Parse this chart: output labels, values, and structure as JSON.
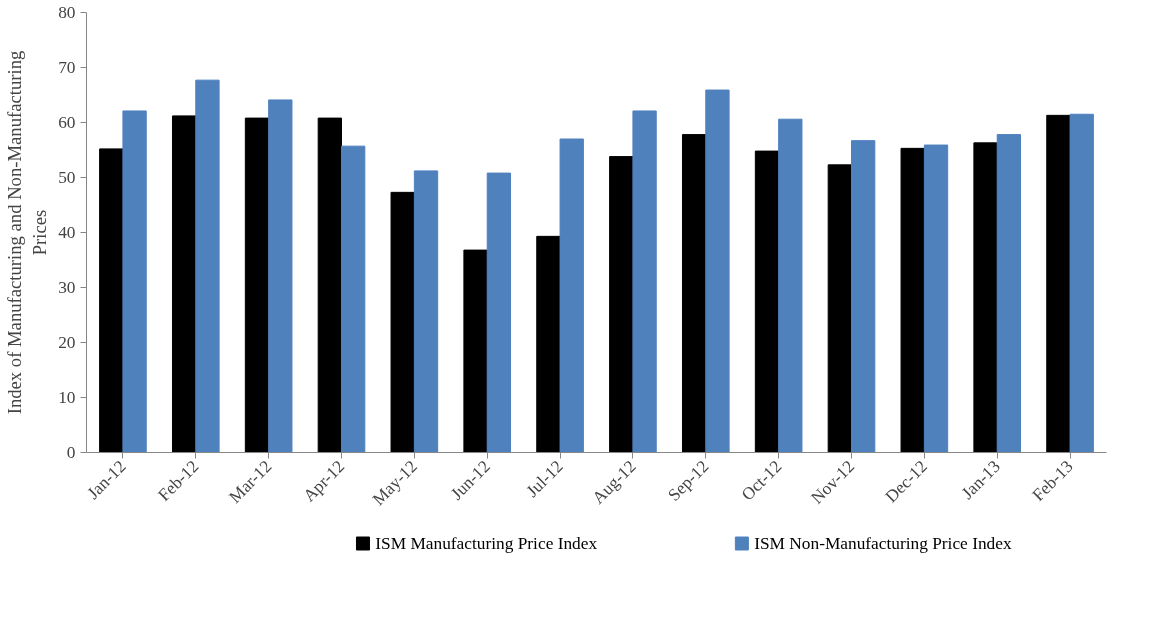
{
  "chart_data": {
    "type": "bar",
    "ylabel": "Index of Manufacturing and Non-Manufacturing Prices",
    "categories": [
      "Jan-12",
      "Feb-12",
      "Mar-12",
      "Apr-12",
      "May-12",
      "Jun-12",
      "Jul-12",
      "Aug-12",
      "Sep-12",
      "Oct-12",
      "Nov-12",
      "Dec-12",
      "Jan-13",
      "Feb-13"
    ],
    "series": [
      {
        "name": "ISM Manufacturing Price Index",
        "color": "#000000",
        "values": [
          55.2,
          61.2,
          60.8,
          60.8,
          47.3,
          36.8,
          39.3,
          53.8,
          57.8,
          54.8,
          52.3,
          55.3,
          56.3,
          61.3
        ]
      },
      {
        "name": "ISM Non-Manufacturing Price Index",
        "color": "#4f81bd",
        "values": [
          62.1,
          67.7,
          64.1,
          55.7,
          51.2,
          50.8,
          57.0,
          62.1,
          65.9,
          60.6,
          56.7,
          55.9,
          57.8,
          61.5
        ]
      }
    ],
    "ylim": [
      0,
      80
    ],
    "yticks": [
      0,
      10,
      20,
      30,
      40,
      50,
      60,
      70,
      80
    ],
    "grid": false,
    "legend": "bottom"
  }
}
